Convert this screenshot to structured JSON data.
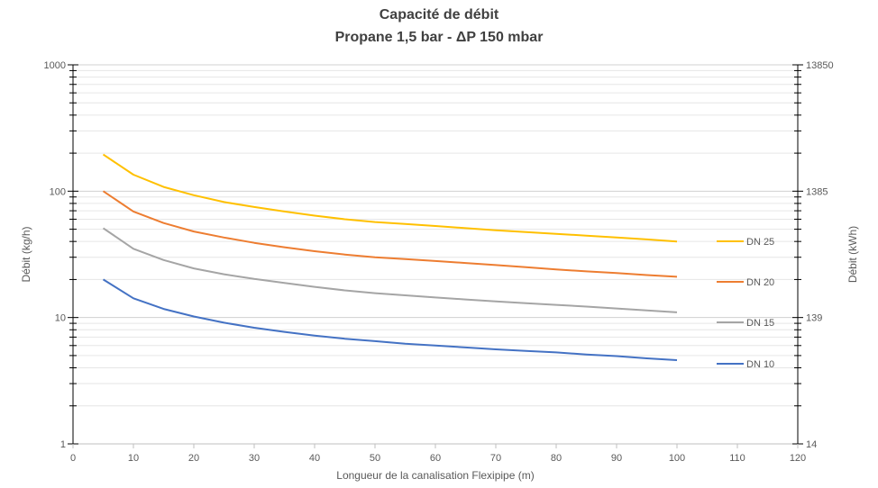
{
  "chart_data": {
    "type": "line",
    "title": "Capacité de débit",
    "subtitle": "Propane 1,5 bar - ΔP 150 mbar",
    "xlabel": "Longueur de la canalisation Flexipipe (m)",
    "ylabel": "Débit (kg/h)",
    "y2label": "Débit (kWh)",
    "xlim": [
      0,
      120
    ],
    "ylim": [
      1,
      1000
    ],
    "y_scale": "log",
    "y2_ticks": [
      "14",
      "139",
      "1385",
      "13850"
    ],
    "x_ticks": [
      0,
      10,
      20,
      30,
      40,
      50,
      60,
      70,
      80,
      90,
      100,
      110,
      120
    ],
    "y_ticks": [
      1,
      10,
      100,
      1000
    ],
    "grid": true,
    "legend_position": "right",
    "x": [
      5,
      10,
      15,
      20,
      25,
      30,
      35,
      40,
      45,
      50,
      55,
      60,
      65,
      70,
      75,
      80,
      85,
      90,
      95,
      100
    ],
    "series": [
      {
        "name": "DN 25",
        "color": "#FFC000",
        "values": [
          195,
          135,
          108,
          93,
          82,
          75,
          69,
          64,
          60,
          57,
          55,
          53,
          51,
          49,
          47.5,
          46,
          44.5,
          43,
          41.5,
          40
        ]
      },
      {
        "name": "DN 20",
        "color": "#ED7D31",
        "values": [
          100,
          69,
          56,
          48,
          43,
          39,
          36,
          33.5,
          31.5,
          30,
          29,
          28,
          27,
          26,
          25,
          24,
          23.2,
          22.5,
          21.7,
          21
        ]
      },
      {
        "name": "DN 15",
        "color": "#A5A5A5",
        "values": [
          51,
          35,
          28.5,
          24.5,
          22,
          20.2,
          18.8,
          17.5,
          16.4,
          15.6,
          15,
          14.4,
          13.9,
          13.4,
          13,
          12.6,
          12.2,
          11.8,
          11.4,
          11
        ]
      },
      {
        "name": "DN 10",
        "color": "#4472C4",
        "values": [
          20,
          14.2,
          11.7,
          10.2,
          9.1,
          8.3,
          7.7,
          7.2,
          6.8,
          6.5,
          6.2,
          6.0,
          5.8,
          5.6,
          5.45,
          5.3,
          5.1,
          4.95,
          4.75,
          4.6
        ]
      }
    ]
  }
}
